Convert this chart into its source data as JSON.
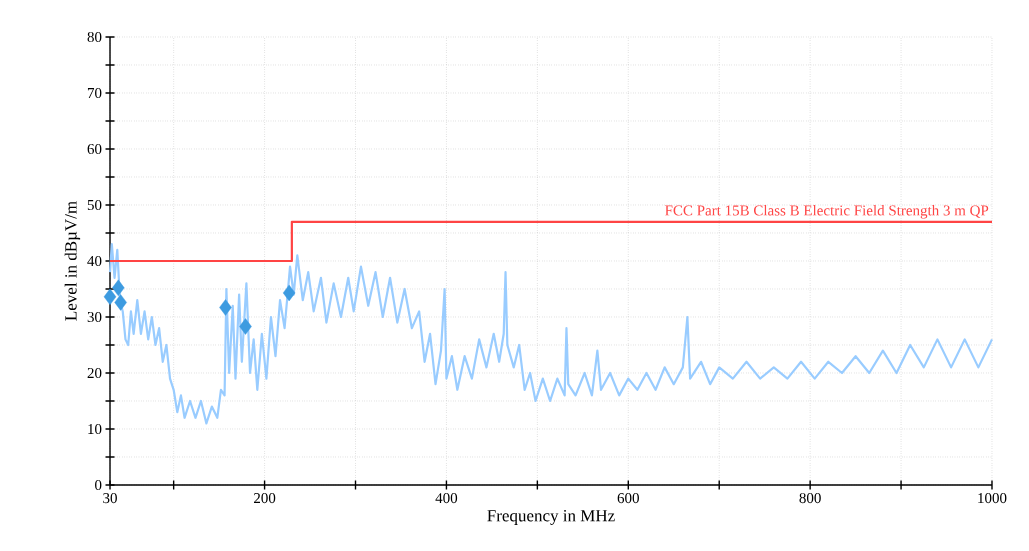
{
  "chart_data": {
    "type": "line",
    "xlabel": "Frequency in MHz",
    "ylabel": "Level in dBµV/m",
    "xlim": [
      30,
      1000
    ],
    "ylim": [
      0,
      80
    ],
    "xticks": [
      30,
      {
        "value": 100,
        "label": null
      },
      200,
      {
        "value": 300,
        "label": null
      },
      400,
      {
        "value": 500,
        "label": null
      },
      600,
      {
        "value": 700,
        "label": null
      },
      800,
      {
        "value": 900,
        "label": null
      },
      1000
    ],
    "yticks": [
      0,
      {
        "value": 5,
        "label": null
      },
      10,
      {
        "value": 15,
        "label": null
      },
      20,
      {
        "value": 25,
        "label": null
      },
      30,
      {
        "value": 35,
        "label": null
      },
      40,
      {
        "value": 45,
        "label": null
      },
      50,
      {
        "value": 55,
        "label": null
      },
      60,
      {
        "value": 65,
        "label": null
      },
      70,
      {
        "value": 75,
        "label": null
      },
      80
    ],
    "grid": true,
    "series": [
      {
        "color": "#99ccff",
        "x": [
          30,
          32,
          35,
          38,
          41,
          44,
          47,
          50,
          53,
          56,
          60,
          64,
          68,
          72,
          76,
          80,
          84,
          88,
          92,
          96,
          100,
          104,
          108,
          112,
          118,
          124,
          130,
          136,
          142,
          148,
          152,
          156,
          158,
          161,
          165,
          168,
          172,
          175,
          180,
          184,
          188,
          192,
          197,
          202,
          207,
          212,
          217,
          222,
          228,
          232,
          236,
          242,
          248,
          254,
          262,
          268,
          276,
          284,
          292,
          298,
          306,
          314,
          322,
          330,
          338,
          346,
          354,
          362,
          370,
          376,
          382,
          388,
          394,
          398,
          400,
          406,
          412,
          420,
          428,
          436,
          444,
          452,
          458,
          463,
          465,
          467,
          474,
          480,
          486,
          492,
          498,
          506,
          514,
          522,
          530,
          532,
          534,
          542,
          552,
          560,
          566,
          570,
          580,
          590,
          600,
          610,
          620,
          630,
          640,
          650,
          660,
          665,
          668,
          680,
          690,
          700,
          715,
          730,
          745,
          760,
          775,
          790,
          805,
          820,
          835,
          850,
          865,
          880,
          895,
          910,
          925,
          940,
          955,
          970,
          985,
          1000
        ],
        "values": [
          38,
          43,
          37,
          42,
          33,
          31,
          26,
          25,
          31,
          27,
          33,
          27,
          31,
          26,
          30,
          25,
          28,
          22,
          25,
          19,
          17,
          13,
          16,
          12,
          15,
          12,
          15,
          11,
          14,
          12,
          17,
          16,
          35,
          20,
          32,
          19,
          34,
          22,
          36,
          20,
          26,
          17,
          27,
          19,
          30,
          23,
          33,
          28,
          39,
          34,
          41,
          33,
          38,
          31,
          37,
          29,
          36,
          30,
          37,
          31,
          39,
          32,
          38,
          30,
          37,
          29,
          35,
          28,
          31,
          22,
          27,
          18,
          24,
          35,
          19,
          23,
          17,
          23,
          19,
          26,
          21,
          27,
          22,
          27,
          38,
          25,
          21,
          25,
          17,
          20,
          15,
          19,
          15,
          19,
          16,
          28,
          18,
          16,
          20,
          16,
          24,
          17,
          20,
          16,
          19,
          17,
          20,
          17,
          21,
          18,
          21,
          30,
          19,
          22,
          18,
          21,
          19,
          22,
          19,
          21,
          19,
          22,
          19,
          22,
          20,
          23,
          20,
          24,
          20,
          25,
          21,
          26,
          21,
          26,
          21,
          26
        ]
      },
      {
        "type": "step",
        "name": "FCC Part 15B Class B Electric Field Strength 3 m QP",
        "color": "#ff4444",
        "x": [
          30,
          230,
          1000
        ],
        "values": [
          40,
          47,
          47
        ]
      },
      {
        "type": "scatter",
        "marker": "diamond",
        "color": "#3d9be0",
        "x": [
          30,
          39.1,
          41.7,
          157,
          179,
          227
        ],
        "values": [
          33.6,
          35.2,
          32.6,
          31.7,
          28.3,
          34.3
        ]
      }
    ]
  }
}
